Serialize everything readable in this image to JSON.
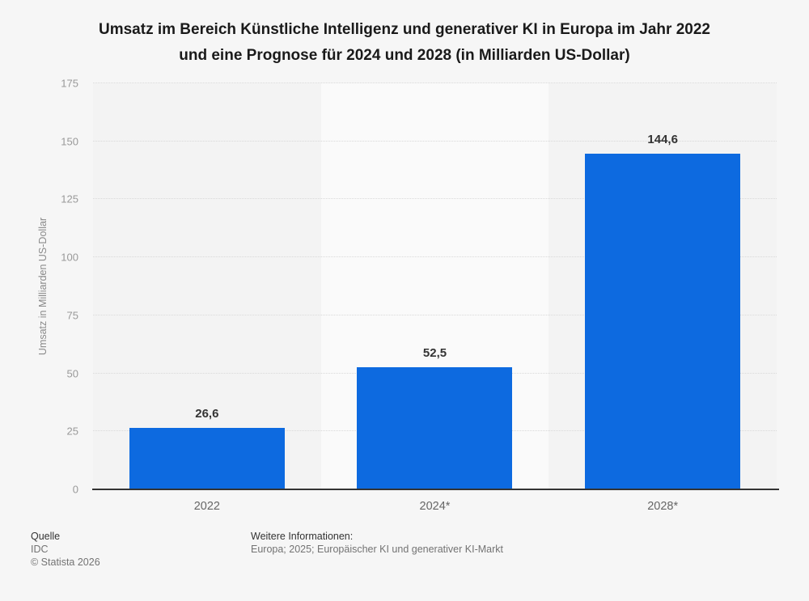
{
  "chart": {
    "title_lines": [
      "Umsatz im Bereich Künstliche Intelligenz und generativer KI in Europa im Jahr 2022",
      "und eine Prognose für 2024 und 2028 (in Milliarden US-Dollar)"
    ],
    "y_axis_title": "Umsatz in Milliarden US-Dollar"
  },
  "chart_data": {
    "type": "bar",
    "title": "Umsatz im Bereich Künstliche Intelligenz und generativer KI in Europa im Jahr 2022 und eine Prognose für 2024 und 2028 (in Milliarden US-Dollar)",
    "categories": [
      "2022",
      "2024*",
      "2028*"
    ],
    "values": [
      26.6,
      52.5,
      144.6
    ],
    "value_labels": [
      "26,6",
      "52,5",
      "144,6"
    ],
    "xlabel": "",
    "ylabel": "Umsatz in Milliarden US-Dollar",
    "ylim": [
      0,
      175
    ],
    "yticks": [
      0,
      25,
      50,
      75,
      100,
      125,
      150,
      175
    ],
    "grid": "horizontal-dotted",
    "legend": "none"
  },
  "colors": {
    "background": "#f6f6f6",
    "bar": "#0d6ae0",
    "band_dark": "#f3f3f3",
    "band_light": "#fafafa",
    "gridline": "#d9d9d9",
    "axis": "#333333",
    "title_text": "#1a1a1a",
    "value_label": "#333333",
    "tick_label": "#999999",
    "x_label": "#666666"
  },
  "footer": {
    "source_label": "Quelle",
    "source_value": "IDC",
    "copyright": "© Statista 2026",
    "info_label": "Weitere Informationen:",
    "info_value": "Europa; 2025; Europäischer KI und generativer KI-Markt"
  }
}
